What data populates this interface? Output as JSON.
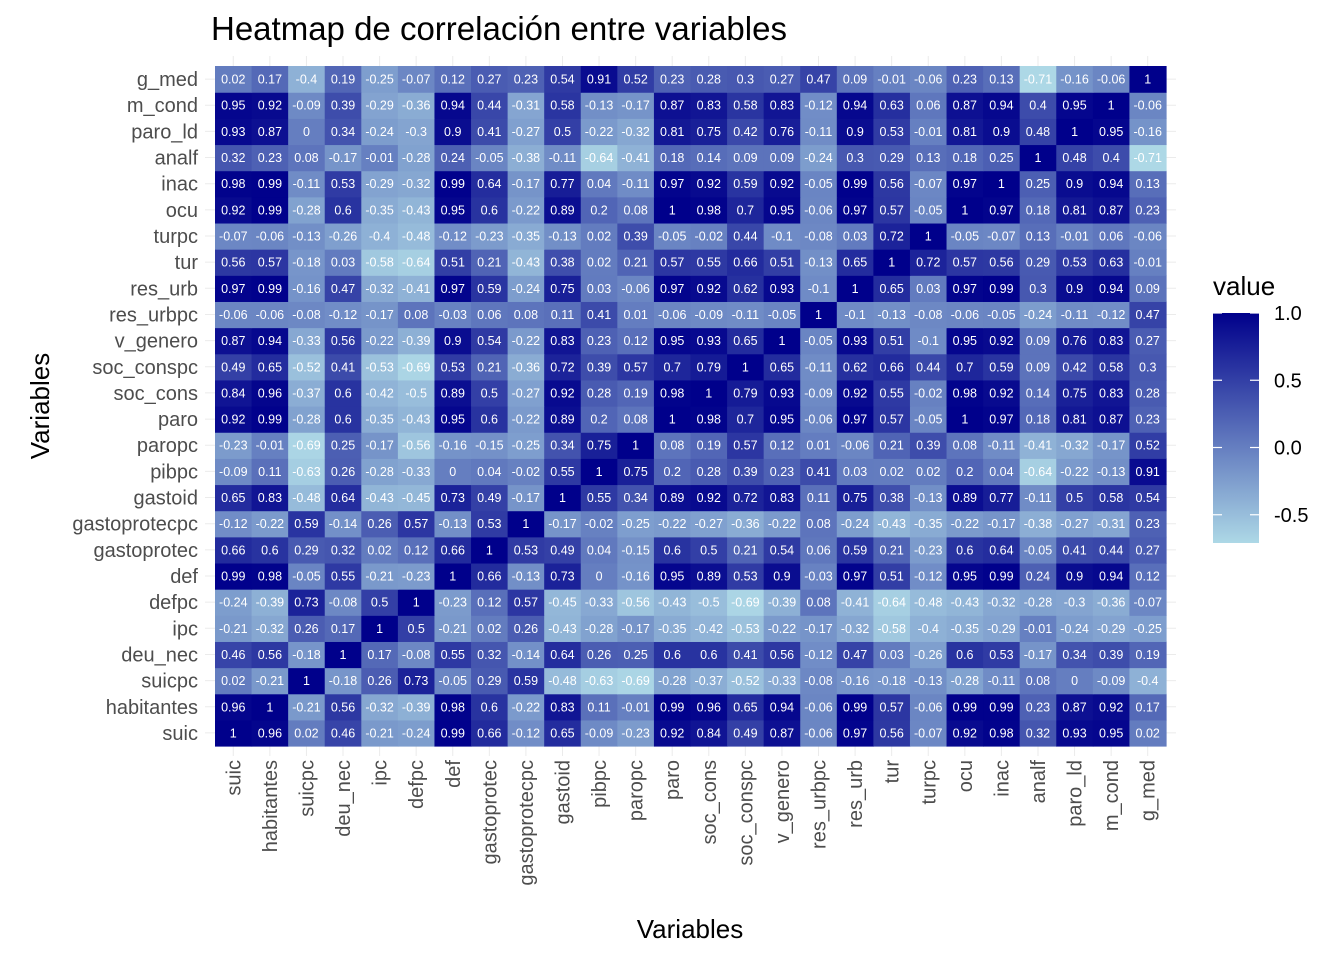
{
  "chart_data": {
    "type": "heatmap",
    "title": "Heatmap de correlación entre variables",
    "xlabel": "Variables",
    "ylabel": "Variables",
    "variables": [
      "suic",
      "habitantes",
      "suicpc",
      "deu_nec",
      "ipc",
      "defpc",
      "def",
      "gastoprotec",
      "gastoprotecpc",
      "gastoid",
      "pibpc",
      "paropc",
      "paro",
      "soc_cons",
      "soc_conspc",
      "v_genero",
      "res_urbpc",
      "res_urb",
      "tur",
      "turpc",
      "ocu",
      "inac",
      "analf",
      "paro_ld",
      "m_cond",
      "g_med"
    ],
    "values": [
      [
        1,
        0.96,
        0.02,
        0.46,
        -0.21,
        -0.24,
        0.99,
        0.66,
        -0.12,
        0.65,
        -0.09,
        -0.23,
        0.92,
        0.84,
        0.49,
        0.87,
        -0.06,
        0.97,
        0.56,
        -0.07,
        0.92,
        0.98,
        0.32,
        0.93,
        0.95,
        0.02
      ],
      [
        0.96,
        1,
        -0.21,
        0.56,
        -0.32,
        -0.39,
        0.98,
        0.6,
        -0.22,
        0.83,
        0.11,
        -0.01,
        0.99,
        0.96,
        0.65,
        0.94,
        -0.06,
        0.99,
        0.57,
        -0.06,
        0.99,
        0.99,
        0.23,
        0.87,
        0.92,
        0.17
      ],
      [
        0.02,
        -0.21,
        1,
        -0.18,
        0.26,
        0.73,
        -0.05,
        0.29,
        0.59,
        -0.48,
        -0.63,
        -0.69,
        -0.28,
        -0.37,
        -0.52,
        -0.33,
        -0.08,
        -0.16,
        -0.18,
        -0.13,
        -0.28,
        -0.11,
        0.08,
        0,
        -0.09,
        -0.4
      ],
      [
        0.46,
        0.56,
        -0.18,
        1,
        0.17,
        -0.08,
        0.55,
        0.32,
        -0.14,
        0.64,
        0.26,
        0.25,
        0.6,
        0.6,
        0.41,
        0.56,
        -0.12,
        0.47,
        0.03,
        -0.26,
        0.6,
        0.53,
        -0.17,
        0.34,
        0.39,
        0.19
      ],
      [
        -0.21,
        -0.32,
        0.26,
        0.17,
        1,
        0.5,
        -0.21,
        0.02,
        0.26,
        -0.43,
        -0.28,
        -0.17,
        -0.35,
        -0.42,
        -0.53,
        -0.22,
        -0.17,
        -0.32,
        -0.58,
        -0.4,
        -0.35,
        -0.29,
        -0.01,
        -0.24,
        -0.29,
        -0.25
      ],
      [
        -0.24,
        -0.39,
        0.73,
        -0.08,
        0.5,
        1,
        -0.23,
        0.12,
        0.57,
        -0.45,
        -0.33,
        -0.56,
        -0.43,
        -0.5,
        -0.69,
        -0.39,
        0.08,
        -0.41,
        -0.64,
        -0.48,
        -0.43,
        -0.32,
        -0.28,
        -0.3,
        -0.36,
        -0.07
      ],
      [
        0.99,
        0.98,
        -0.05,
        0.55,
        -0.21,
        -0.23,
        1,
        0.66,
        -0.13,
        0.73,
        0,
        -0.16,
        0.95,
        0.89,
        0.53,
        0.9,
        -0.03,
        0.97,
        0.51,
        -0.12,
        0.95,
        0.99,
        0.24,
        0.9,
        0.94,
        0.12
      ],
      [
        0.66,
        0.6,
        0.29,
        0.32,
        0.02,
        0.12,
        0.66,
        1,
        0.53,
        0.49,
        0.04,
        -0.15,
        0.6,
        0.5,
        0.21,
        0.54,
        0.06,
        0.59,
        0.21,
        -0.23,
        0.6,
        0.64,
        -0.05,
        0.41,
        0.44,
        0.27
      ],
      [
        -0.12,
        -0.22,
        0.59,
        -0.14,
        0.26,
        0.57,
        -0.13,
        0.53,
        1,
        -0.17,
        -0.02,
        -0.25,
        -0.22,
        -0.27,
        -0.36,
        -0.22,
        0.08,
        -0.24,
        -0.43,
        -0.35,
        -0.22,
        -0.17,
        -0.38,
        -0.27,
        -0.31,
        0.23
      ],
      [
        0.65,
        0.83,
        -0.48,
        0.64,
        -0.43,
        -0.45,
        0.73,
        0.49,
        -0.17,
        1,
        0.55,
        0.34,
        0.89,
        0.92,
        0.72,
        0.83,
        0.11,
        0.75,
        0.38,
        -0.13,
        0.89,
        0.77,
        -0.11,
        0.5,
        0.58,
        0.54
      ],
      [
        -0.09,
        0.11,
        -0.63,
        0.26,
        -0.28,
        -0.33,
        0,
        0.04,
        -0.02,
        0.55,
        1,
        0.75,
        0.2,
        0.28,
        0.39,
        0.23,
        0.41,
        0.03,
        0.02,
        0.02,
        0.2,
        0.04,
        -0.64,
        -0.22,
        -0.13,
        0.91
      ],
      [
        -0.23,
        -0.01,
        -0.69,
        0.25,
        -0.17,
        -0.56,
        -0.16,
        -0.15,
        -0.25,
        0.34,
        0.75,
        1,
        0.08,
        0.19,
        0.57,
        0.12,
        0.01,
        -0.06,
        0.21,
        0.39,
        0.08,
        -0.11,
        -0.41,
        -0.32,
        -0.17,
        0.52
      ],
      [
        0.92,
        0.99,
        -0.28,
        0.6,
        -0.35,
        -0.43,
        0.95,
        0.6,
        -0.22,
        0.89,
        0.2,
        0.08,
        1,
        0.98,
        0.7,
        0.95,
        -0.06,
        0.97,
        0.57,
        -0.05,
        1,
        0.97,
        0.18,
        0.81,
        0.87,
        0.23
      ],
      [
        0.84,
        0.96,
        -0.37,
        0.6,
        -0.42,
        -0.5,
        0.89,
        0.5,
        -0.27,
        0.92,
        0.28,
        0.19,
        0.98,
        1,
        0.79,
        0.93,
        -0.09,
        0.92,
        0.55,
        -0.02,
        0.98,
        0.92,
        0.14,
        0.75,
        0.83,
        0.28
      ],
      [
        0.49,
        0.65,
        -0.52,
        0.41,
        -0.53,
        -0.69,
        0.53,
        0.21,
        -0.36,
        0.72,
        0.39,
        0.57,
        0.7,
        0.79,
        1,
        0.65,
        -0.11,
        0.62,
        0.66,
        0.44,
        0.7,
        0.59,
        0.09,
        0.42,
        0.58,
        0.3
      ],
      [
        0.87,
        0.94,
        -0.33,
        0.56,
        -0.22,
        -0.39,
        0.9,
        0.54,
        -0.22,
        0.83,
        0.23,
        0.12,
        0.95,
        0.93,
        0.65,
        1,
        -0.05,
        0.93,
        0.51,
        -0.1,
        0.95,
        0.92,
        0.09,
        0.76,
        0.83,
        0.27
      ],
      [
        -0.06,
        -0.06,
        -0.08,
        -0.12,
        -0.17,
        0.08,
        -0.03,
        0.06,
        0.08,
        0.11,
        0.41,
        0.01,
        -0.06,
        -0.09,
        -0.11,
        -0.05,
        1,
        -0.1,
        -0.13,
        -0.08,
        -0.06,
        -0.05,
        -0.24,
        -0.11,
        -0.12,
        0.47
      ],
      [
        0.97,
        0.99,
        -0.16,
        0.47,
        -0.32,
        -0.41,
        0.97,
        0.59,
        -0.24,
        0.75,
        0.03,
        -0.06,
        0.97,
        0.92,
        0.62,
        0.93,
        -0.1,
        1,
        0.65,
        0.03,
        0.97,
        0.99,
        0.3,
        0.9,
        0.94,
        0.09
      ],
      [
        0.56,
        0.57,
        -0.18,
        0.03,
        -0.58,
        -0.64,
        0.51,
        0.21,
        -0.43,
        0.38,
        0.02,
        0.21,
        0.57,
        0.55,
        0.66,
        0.51,
        -0.13,
        0.65,
        1,
        0.72,
        0.57,
        0.56,
        0.29,
        0.53,
        0.63,
        -0.01
      ],
      [
        -0.07,
        -0.06,
        -0.13,
        -0.26,
        -0.4,
        -0.48,
        -0.12,
        -0.23,
        -0.35,
        -0.13,
        0.02,
        0.39,
        -0.05,
        -0.02,
        0.44,
        -0.1,
        -0.08,
        0.03,
        0.72,
        1,
        -0.05,
        -0.07,
        0.13,
        -0.01,
        0.06,
        -0.06
      ],
      [
        0.92,
        0.99,
        -0.28,
        0.6,
        -0.35,
        -0.43,
        0.95,
        0.6,
        -0.22,
        0.89,
        0.2,
        0.08,
        1,
        0.98,
        0.7,
        0.95,
        -0.06,
        0.97,
        0.57,
        -0.05,
        1,
        0.97,
        0.18,
        0.81,
        0.87,
        0.23
      ],
      [
        0.98,
        0.99,
        -0.11,
        0.53,
        -0.29,
        -0.32,
        0.99,
        0.64,
        -0.17,
        0.77,
        0.04,
        -0.11,
        0.97,
        0.92,
        0.59,
        0.92,
        -0.05,
        0.99,
        0.56,
        -0.07,
        0.97,
        1,
        0.25,
        0.9,
        0.94,
        0.13
      ],
      [
        0.32,
        0.23,
        0.08,
        -0.17,
        -0.01,
        -0.28,
        0.24,
        -0.05,
        -0.38,
        -0.11,
        -0.64,
        -0.41,
        0.18,
        0.14,
        0.09,
        0.09,
        -0.24,
        0.3,
        0.29,
        0.13,
        0.18,
        0.25,
        1,
        0.48,
        0.4,
        -0.71
      ],
      [
        0.93,
        0.87,
        0,
        0.34,
        -0.24,
        -0.3,
        0.9,
        0.41,
        -0.27,
        0.5,
        -0.22,
        -0.32,
        0.81,
        0.75,
        0.42,
        0.76,
        -0.11,
        0.9,
        0.53,
        -0.01,
        0.81,
        0.9,
        0.48,
        1,
        0.95,
        -0.16
      ],
      [
        0.95,
        0.92,
        -0.09,
        0.39,
        -0.29,
        -0.36,
        0.94,
        0.44,
        -0.31,
        0.58,
        -0.13,
        -0.17,
        0.87,
        0.83,
        0.58,
        0.83,
        -0.12,
        0.94,
        0.63,
        0.06,
        0.87,
        0.94,
        0.4,
        0.95,
        1,
        -0.06
      ],
      [
        0.02,
        0.17,
        -0.4,
        0.19,
        -0.25,
        -0.07,
        0.12,
        0.27,
        0.23,
        0.54,
        0.91,
        0.52,
        0.23,
        0.28,
        0.3,
        0.27,
        0.47,
        0.09,
        -0.01,
        -0.06,
        0.23,
        0.13,
        -0.71,
        -0.16,
        -0.06,
        1
      ]
    ],
    "color_scale": {
      "low": "#add8e6",
      "high": "#00008b",
      "range": [
        -0.71,
        1
      ]
    },
    "legend": {
      "title": "value",
      "ticks": [
        1.0,
        0.5,
        0.0,
        -0.5
      ],
      "tick_labels": [
        "1.0",
        "0.5",
        "0.0",
        "-0.5"
      ],
      "placement": "right"
    }
  }
}
